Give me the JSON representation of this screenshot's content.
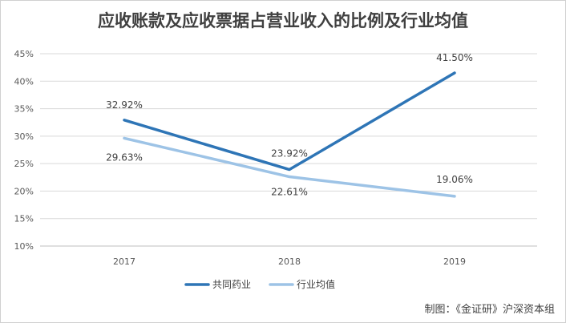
{
  "chart_data": {
    "type": "line",
    "title": "应收账款及应收票据占营业收入的比例及行业均值",
    "categories": [
      "2017",
      "2018",
      "2019"
    ],
    "series": [
      {
        "name": "共同药业",
        "values": [
          32.92,
          23.92,
          41.5
        ],
        "labels": [
          "32.92%",
          "23.92%",
          "41.50%"
        ],
        "color": "#2E75B6"
      },
      {
        "name": "行业均值",
        "values": [
          29.63,
          22.61,
          19.06
        ],
        "labels": [
          "29.63%",
          "22.61%",
          "19.06%"
        ],
        "color": "#9DC3E6"
      }
    ],
    "ylim": [
      10,
      45
    ],
    "yticks": [
      10,
      15,
      20,
      25,
      30,
      35,
      40,
      45
    ],
    "ytick_labels": [
      "10%",
      "15%",
      "20%",
      "25%",
      "30%",
      "35%",
      "40%",
      "45%"
    ],
    "grid": true,
    "legend_position": "bottom"
  },
  "credit": "制图：《金证研》沪深资本组"
}
